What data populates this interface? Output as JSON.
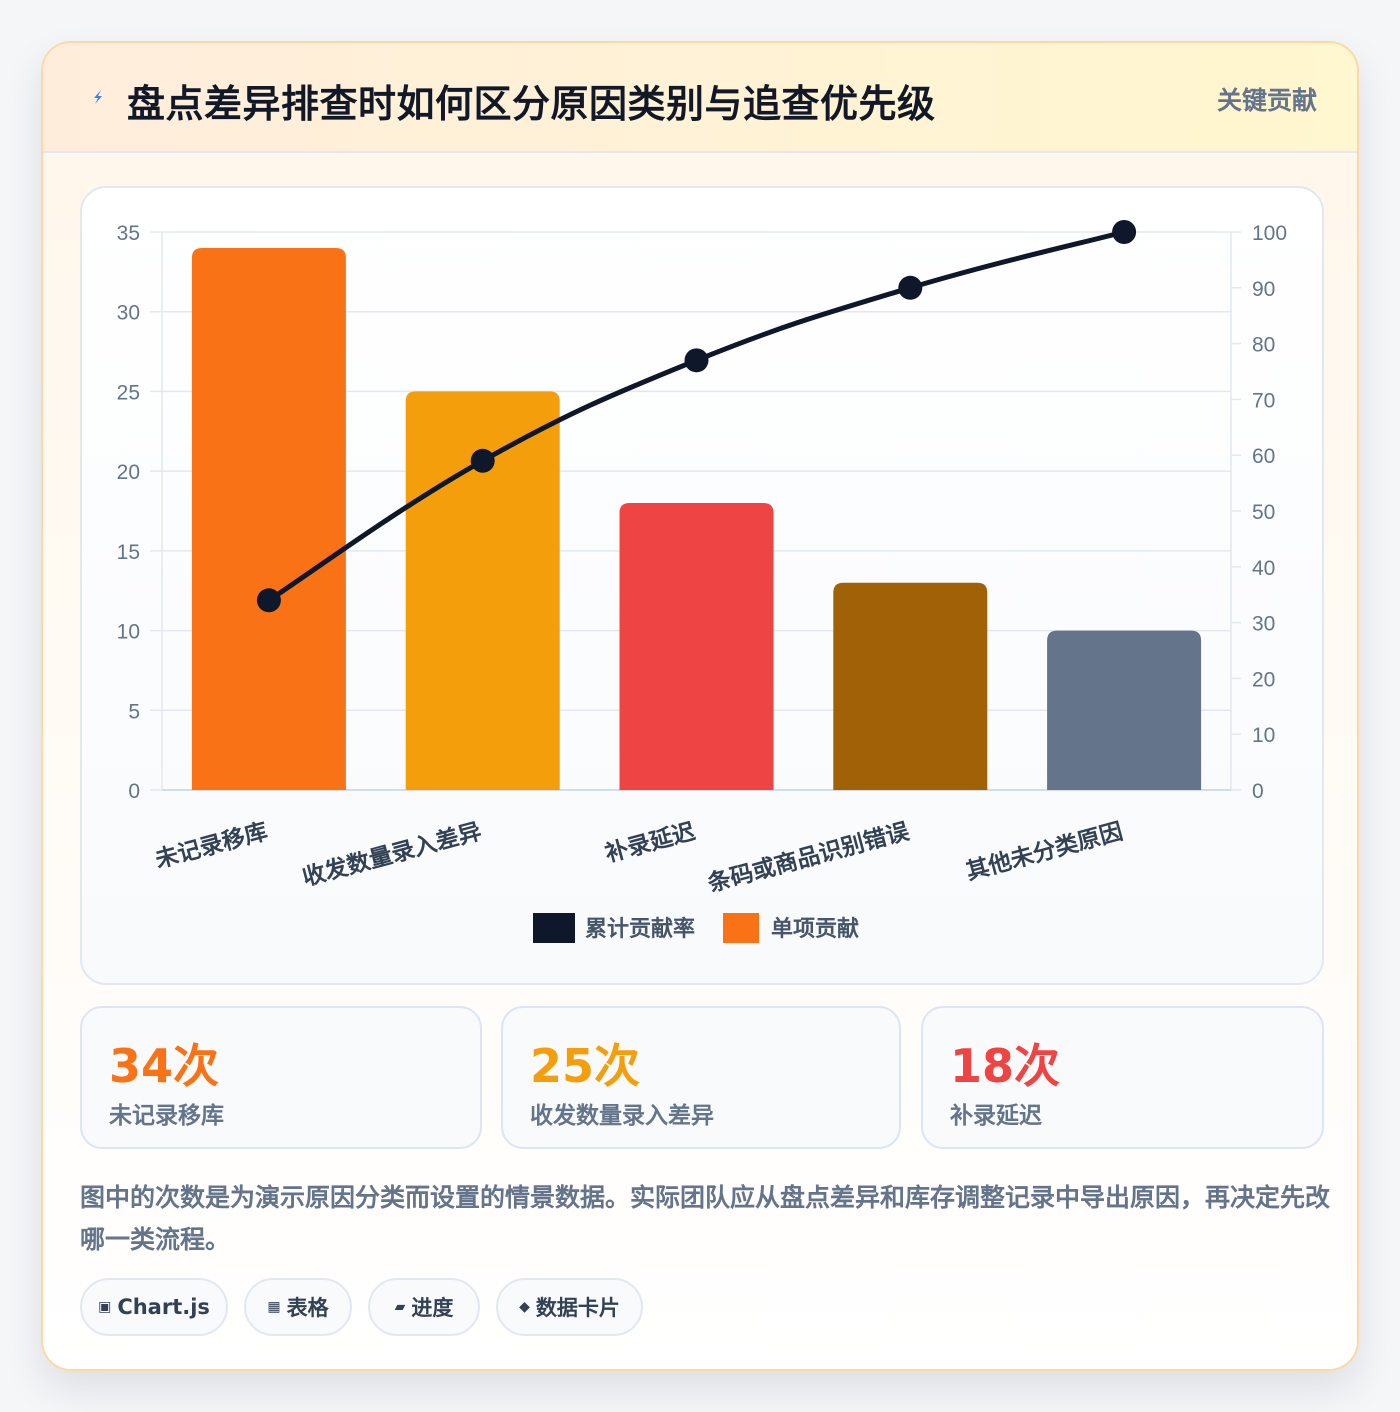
{
  "header": {
    "title": "盘点差异排查时如何区分原因类别与追查优先级",
    "badge": "关键贡献"
  },
  "chart_data": {
    "type": "bar",
    "categories": [
      "未记录移库",
      "收发数量录入差异",
      "补录延迟",
      "条码或商品识别错误",
      "其他未分类原因"
    ],
    "series": [
      {
        "name": "单项贡献",
        "type": "bar",
        "axis": "left",
        "values": [
          34,
          25,
          18,
          13,
          10
        ]
      },
      {
        "name": "累计贡献率",
        "type": "line",
        "axis": "right",
        "values": [
          34,
          59,
          77,
          90,
          100
        ]
      }
    ],
    "bar_colors": [
      "#f97316",
      "#f59e0b",
      "#ef4444",
      "#a16207",
      "#64748b"
    ],
    "line_color": "#0f172a",
    "y_left": {
      "min": 0,
      "max": 35,
      "ticks": [
        0,
        5,
        10,
        15,
        20,
        25,
        30,
        35
      ]
    },
    "y_right": {
      "min": 0,
      "max": 100,
      "ticks": [
        0,
        10,
        20,
        30,
        40,
        50,
        60,
        70,
        80,
        90,
        100
      ]
    },
    "legend": [
      {
        "label": "累计贡献率",
        "color": "#0f172a"
      },
      {
        "label": "单项贡献",
        "color": "#f97316"
      }
    ],
    "legend_position": "bottom",
    "grid": true
  },
  "stats": [
    {
      "value": "34次",
      "label": "未记录移库",
      "color": "#f97316"
    },
    {
      "value": "25次",
      "label": "收发数量录入差异",
      "color": "#f59e0b"
    },
    {
      "value": "18次",
      "label": "补录延迟",
      "color": "#ef4444"
    }
  ],
  "note": "图中的次数是为演示原因分类而设置的情景数据。实际团队应从盘点差异和库存调整记录中导出原因，再决定先改哪一类流程。",
  "tags": [
    {
      "icon": "▣",
      "icon_name": "chart-icon",
      "label": "Chart.js"
    },
    {
      "icon": "▦",
      "icon_name": "table-icon",
      "label": "表格"
    },
    {
      "icon": "▰",
      "icon_name": "progress-icon",
      "label": "进度"
    },
    {
      "icon": "◆",
      "icon_name": "data-card-icon",
      "label": "数据卡片"
    }
  ]
}
